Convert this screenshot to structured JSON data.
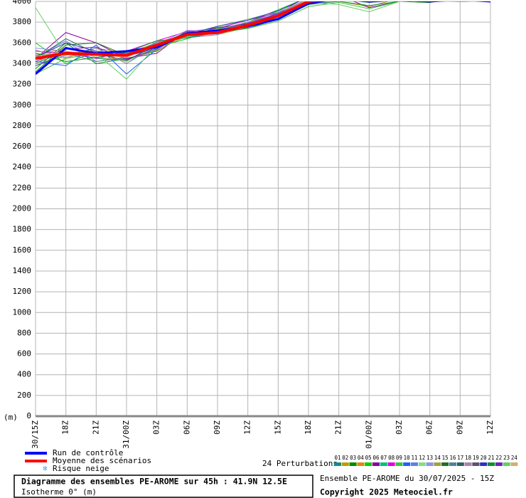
{
  "chart_data": {
    "type": "line",
    "title": "Diagramme des ensembles PE-AROME sur 45h : 41.9N 12.5E",
    "subtitle": "Isotherme 0° (m)",
    "y_label": "(m)",
    "run_info": "Ensemble PE-AROME du 30/07/2025 - 15Z",
    "copyright": "Copyright 2025 Meteociel.fr",
    "snow_label": "Risque neige",
    "perturbations_label": "24 Perturbations",
    "categories": [
      "30/15Z",
      "18Z",
      "21Z",
      "31/00Z",
      "03Z",
      "06Z",
      "09Z",
      "12Z",
      "15Z",
      "18Z",
      "21Z",
      "01/00Z",
      "03Z",
      "06Z",
      "09Z",
      "12Z"
    ],
    "ylim": [
      0,
      4000
    ],
    "yticks": [
      0,
      200,
      400,
      600,
      800,
      1000,
      1200,
      1400,
      1600,
      1800,
      2000,
      2200,
      2400,
      2600,
      2800,
      3000,
      3200,
      3400,
      3600,
      3800,
      4000
    ],
    "grid": true,
    "series": [
      {
        "name": "01",
        "color": "#1a8a8a",
        "values": [
          3400,
          3520,
          3450,
          3430,
          3550,
          3700,
          3720,
          3800,
          3900,
          4020,
          4060,
          4000,
          4050,
          4020,
          4040,
          4000
        ]
      },
      {
        "name": "02",
        "color": "#b8a000",
        "values": [
          3500,
          3450,
          3550,
          3500,
          3600,
          3650,
          3680,
          3750,
          3850,
          3980,
          4000,
          3950,
          4030,
          4000,
          4010,
          4020
        ]
      },
      {
        "name": "03",
        "color": "#008a00",
        "values": [
          3350,
          3600,
          3400,
          3450,
          3520,
          3700,
          3750,
          3780,
          3880,
          4010,
          4030,
          4020,
          4000,
          3990,
          4040,
          4010
        ]
      },
      {
        "name": "04",
        "color": "#e08a00",
        "values": [
          3480,
          3550,
          3500,
          3420,
          3600,
          3690,
          3710,
          3760,
          3830,
          4000,
          4050,
          4030,
          4010,
          4030,
          4020,
          4000
        ]
      },
      {
        "name": "05",
        "color": "#00d000",
        "values": [
          3600,
          3400,
          3520,
          3500,
          3560,
          3640,
          3730,
          3800,
          3920,
          4040,
          4020,
          3990,
          4020,
          4010,
          4050,
          4030
        ]
      },
      {
        "name": "06",
        "color": "#8a00a0",
        "values": [
          3450,
          3700,
          3600,
          3450,
          3500,
          3720,
          3700,
          3750,
          3870,
          4030,
          4060,
          3940,
          4000,
          4020,
          4000,
          4010
        ]
      },
      {
        "name": "07",
        "color": "#00c080",
        "values": [
          3380,
          3480,
          3550,
          3400,
          3580,
          3680,
          3690,
          3780,
          3850,
          3990,
          4010,
          4000,
          4030,
          4040,
          4020,
          4010
        ]
      },
      {
        "name": "08",
        "color": "#e000e0",
        "values": [
          3520,
          3500,
          3450,
          3520,
          3620,
          3710,
          3740,
          3820,
          3890,
          4050,
          4020,
          4030,
          4010,
          4000,
          4030,
          4040
        ]
      },
      {
        "name": "09",
        "color": "#40c040",
        "values": [
          3300,
          3450,
          3500,
          3480,
          3550,
          3660,
          3700,
          3740,
          3810,
          3950,
          3990,
          3930,
          4000,
          4020,
          4010,
          4000
        ]
      },
      {
        "name": "10",
        "color": "#2060ff",
        "values": [
          3420,
          3380,
          3580,
          3300,
          3540,
          3700,
          3720,
          3790,
          3860,
          4010,
          4030,
          4020,
          4040,
          4010,
          4000,
          4020
        ]
      },
      {
        "name": "11",
        "color": "#6080e0",
        "values": [
          3460,
          3620,
          3420,
          3460,
          3600,
          3650,
          3680,
          3770,
          3880,
          4000,
          4040,
          4010,
          4000,
          4030,
          4020,
          4030
        ]
      },
      {
        "name": "12",
        "color": "#80e080",
        "values": [
          3500,
          3480,
          3520,
          3420,
          3570,
          3690,
          3760,
          3830,
          3900,
          4020,
          4050,
          4000,
          4010,
          4000,
          4040,
          4010
        ]
      },
      {
        "name": "13",
        "color": "#9090f0",
        "values": [
          3550,
          3520,
          3480,
          3500,
          3590,
          3720,
          3710,
          3760,
          3840,
          3980,
          4000,
          4030,
          4020,
          4010,
          4030,
          4020
        ]
      },
      {
        "name": "14",
        "color": "#a0a040",
        "values": [
          3400,
          3560,
          3460,
          3440,
          3530,
          3670,
          3690,
          3750,
          3870,
          4000,
          4030,
          4010,
          4000,
          4020,
          4010,
          4000
        ]
      },
      {
        "name": "15",
        "color": "#207020",
        "values": [
          3320,
          3580,
          3600,
          3480,
          3560,
          3680,
          3740,
          3790,
          3860,
          4020,
          4020,
          4000,
          4030,
          4000,
          4040,
          4030
        ]
      },
      {
        "name": "16",
        "color": "#5080a0",
        "values": [
          3480,
          3500,
          3420,
          3460,
          3610,
          3660,
          3700,
          3780,
          3890,
          4010,
          4050,
          3990,
          4010,
          4020,
          4020,
          4010
        ]
      },
      {
        "name": "17",
        "color": "#306060",
        "values": [
          3450,
          3640,
          3500,
          3430,
          3580,
          3700,
          3720,
          3760,
          3850,
          3990,
          4040,
          4020,
          4000,
          4030,
          4010,
          4020
        ]
      },
      {
        "name": "18",
        "color": "#b080b0",
        "values": [
          3530,
          3460,
          3550,
          3400,
          3600,
          3690,
          3730,
          3800,
          3880,
          4030,
          4020,
          4010,
          4020,
          4010,
          4030,
          4000
        ]
      },
      {
        "name": "19",
        "color": "#605070",
        "values": [
          3380,
          3500,
          3480,
          3500,
          3570,
          3710,
          3690,
          3770,
          3860,
          4000,
          4030,
          4000,
          4040,
          4020,
          4000,
          4010
        ]
      },
      {
        "name": "20",
        "color": "#3030c0",
        "values": [
          3460,
          3600,
          3520,
          3470,
          3550,
          3680,
          3760,
          3820,
          3910,
          4040,
          4060,
          4030,
          4010,
          4000,
          4020,
          4030
        ]
      },
      {
        "name": "21",
        "color": "#109030",
        "values": [
          3500,
          3420,
          3460,
          3510,
          3620,
          3650,
          3700,
          3740,
          3830,
          3970,
          4000,
          3960,
          4000,
          4010,
          4030,
          4020
        ]
      },
      {
        "name": "22",
        "color": "#7020c0",
        "values": [
          3420,
          3540,
          3560,
          3440,
          3540,
          3700,
          3720,
          3790,
          3880,
          4010,
          4040,
          4020,
          4030,
          4040,
          4010,
          4000
        ]
      },
      {
        "name": "23",
        "color": "#60d060",
        "values": [
          3940,
          3480,
          3500,
          3250,
          3580,
          3660,
          3730,
          3770,
          3850,
          3990,
          3970,
          3900,
          4000,
          4010,
          4020,
          4010
        ]
      },
      {
        "name": "24",
        "color": "#d0b070",
        "values": [
          3470,
          3520,
          3490,
          3460,
          3590,
          3690,
          3710,
          3780,
          3870,
          4020,
          4030,
          4010,
          4020,
          4000,
          4030,
          4020
        ]
      },
      {
        "name": "Run de contrôle",
        "color": "#0000ff",
        "values": [
          3300,
          3550,
          3500,
          3520,
          3560,
          3690,
          3720,
          3760,
          3830,
          3980,
          4030,
          4000,
          4020,
          4000,
          4020,
          4000
        ]
      },
      {
        "name": "Moyenne des scénarios",
        "color": "#ff0000",
        "values": [
          3450,
          3500,
          3490,
          3480,
          3580,
          3680,
          3700,
          3770,
          3860,
          4000,
          4040,
          4010,
          4020,
          4010,
          4030,
          4010
        ]
      }
    ]
  }
}
